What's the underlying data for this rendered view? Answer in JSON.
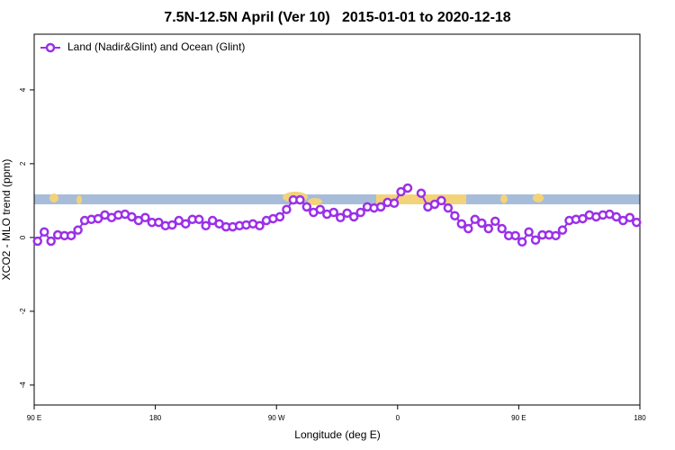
{
  "chart_data": {
    "type": "line",
    "title": "7.5N-12.5N April (Ver 10)   2015-01-01 to 2020-12-18",
    "x_label": "Longitude (deg E)",
    "y_label": "XCO2 - MLO trend (ppm)",
    "xlim": [
      90,
      540
    ],
    "ylim": [
      -4.54,
      5.51
    ],
    "xticks": [
      {
        "value": 90,
        "label": "90 E"
      },
      180,
      {
        "value": 270,
        "label": "90 W"
      },
      {
        "value": 360,
        "label": "0"
      },
      {
        "value": 450,
        "label": "90 E"
      },
      {
        "value": 540,
        "label": "180"
      }
    ],
    "yticks": [
      -4,
      -2,
      0,
      2,
      4
    ],
    "legend_position": "top-left",
    "x": [
      92.5,
      97.5,
      102.5,
      107.5,
      112.5,
      117.5,
      122.5,
      127.5,
      132.5,
      137.5,
      142.5,
      147.5,
      152.5,
      157.5,
      162.5,
      167.5,
      172.5,
      177.5,
      182.5,
      187.5,
      192.5,
      197.5,
      202.5,
      207.5,
      212.5,
      217.5,
      222.5,
      227.5,
      232.5,
      237.5,
      242.5,
      247.5,
      252.5,
      257.5,
      262.5,
      267.5,
      272.5,
      277.5,
      282.5,
      287.5,
      292.5,
      297.5,
      302.5,
      307.5,
      312.5,
      317.5,
      322.5,
      327.5,
      332.5,
      337.5,
      342.5,
      347.5,
      352.5,
      357.5,
      362.5,
      367.5,
      372.5,
      377.5,
      382.5,
      387.5,
      392.5,
      397.5,
      402.5,
      407.5,
      412.5,
      417.5,
      422.5,
      427.5,
      432.5,
      437.5,
      442.5,
      447.5,
      452.5,
      457.5,
      462.5,
      467.5,
      472.5,
      477.5,
      482.5,
      487.5,
      492.5,
      497.5,
      502.5,
      507.5,
      512.5,
      517.5,
      522.5,
      527.5,
      532.5,
      537.5
    ],
    "series": [
      {
        "name": "Land (Nadir&Glint) and Ocean (Glint)",
        "color": "#9b30e8",
        "values": [
          -0.1,
          0.15,
          -0.1,
          0.07,
          0.05,
          0.05,
          0.2,
          0.46,
          0.49,
          0.51,
          0.61,
          0.54,
          0.61,
          0.63,
          0.56,
          0.46,
          0.54,
          0.41,
          0.41,
          0.32,
          0.34,
          0.46,
          0.37,
          0.49,
          0.49,
          0.32,
          0.46,
          0.37,
          0.29,
          0.29,
          0.32,
          0.34,
          0.37,
          0.32,
          0.46,
          0.51,
          0.56,
          0.76,
          1.02,
          1.02,
          0.83,
          0.68,
          0.76,
          0.63,
          0.68,
          0.54,
          0.66,
          0.56,
          0.68,
          0.83,
          0.8,
          0.83,
          0.95,
          0.93,
          1.24,
          1.34,
          null,
          1.2,
          0.83,
          0.9,
          1.0,
          0.8,
          0.59,
          0.37,
          0.24,
          0.49,
          0.39,
          0.24,
          0.44,
          0.24,
          0.05,
          0.05,
          -0.12,
          0.15,
          -0.07,
          0.07,
          0.07,
          0.05,
          0.2,
          0.46,
          0.49,
          0.51,
          0.61,
          0.56,
          0.61,
          0.63,
          0.56,
          0.46,
          0.54,
          0.41
        ]
      }
    ]
  }
}
